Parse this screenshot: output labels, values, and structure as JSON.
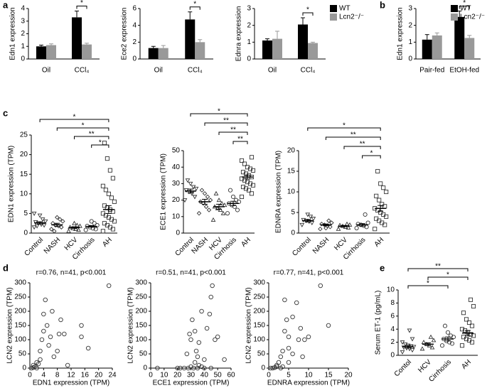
{
  "chart_data": [
    {
      "type": "bar",
      "panel": "a",
      "ylabel": "Edn1 expression",
      "categories": [
        "Oil",
        "CCl₄"
      ],
      "series": [
        {
          "name": "WT",
          "color": "#000000",
          "values": [
            1.0,
            3.3
          ],
          "errors": [
            0.1,
            0.5
          ]
        },
        {
          "name": "Lcn2⁻/⁻",
          "color": "#999999",
          "values": [
            1.1,
            1.15
          ],
          "errors": [
            0.1,
            0.1
          ]
        }
      ],
      "ylim": [
        0,
        4
      ],
      "yticks": [
        0,
        1,
        2,
        3,
        4
      ],
      "brackets": [
        {
          "label": "*",
          "category": 1
        }
      ]
    },
    {
      "type": "bar",
      "ylabel": "Ece2 expression",
      "categories": [
        "Oil",
        "CCl₄"
      ],
      "series": [
        {
          "name": "WT",
          "color": "#000000",
          "values": [
            1.3,
            4.7
          ],
          "errors": [
            0.2,
            0.9
          ]
        },
        {
          "name": "Lcn2⁻/⁻",
          "color": "#999999",
          "values": [
            1.3,
            2.0
          ],
          "errors": [
            0.3,
            0.3
          ]
        }
      ],
      "ylim": [
        0,
        6
      ],
      "yticks": [
        0,
        2,
        4,
        6
      ],
      "brackets": [
        {
          "label": "*",
          "category": 1
        }
      ]
    },
    {
      "type": "bar",
      "ylabel": "Ednra expression",
      "categories": [
        "Oil",
        "CCl₄"
      ],
      "series": [
        {
          "name": "WT",
          "color": "#000000",
          "values": [
            1.1,
            2.05
          ],
          "errors": [
            0.1,
            0.4
          ]
        },
        {
          "name": "Lcn2⁻/⁻",
          "color": "#999999",
          "values": [
            1.2,
            0.95
          ],
          "errors": [
            0.45,
            0.05
          ]
        }
      ],
      "ylim": [
        0,
        3
      ],
      "yticks": [
        0,
        1,
        2,
        3
      ],
      "legend": "outside right",
      "brackets": [
        {
          "label": "*",
          "category": 1
        }
      ]
    },
    {
      "type": "bar",
      "panel": "b",
      "ylabel": "Edn1 expression",
      "categories": [
        "Pair-fed",
        "EtOH-fed"
      ],
      "series": [
        {
          "name": "WT",
          "color": "#000000",
          "values": [
            1.15,
            2.5
          ],
          "errors": [
            0.3,
            0.35
          ]
        },
        {
          "name": "Lcn2⁻/⁻",
          "color": "#999999",
          "values": [
            1.4,
            1.25
          ],
          "errors": [
            0.15,
            0.15
          ]
        }
      ],
      "ylim": [
        0,
        3
      ],
      "yticks": [
        0,
        1,
        2,
        3
      ],
      "legend": "upper right",
      "brackets": [
        {
          "label": "*",
          "category": 1
        }
      ]
    },
    {
      "type": "strip",
      "panel": "c",
      "ylabel": "EDN1 expression (TPM)",
      "categories": [
        "Control",
        "NASH",
        "HCV",
        "Cirrhosis",
        "AH"
      ],
      "markers": [
        "triangle-down",
        "diamond",
        "triangle-up",
        "circle",
        "square"
      ],
      "groups": [
        [
          1.5,
          2,
          2.2,
          2.5,
          2.8,
          3,
          3.5,
          4.5,
          1.8,
          5
        ],
        [
          1,
          1.5,
          1.8,
          2,
          2.5,
          3,
          3.5,
          4,
          0.5
        ],
        [
          0.5,
          0.8,
          1,
          1.2,
          1.5,
          1.8,
          2,
          2.5
        ],
        [
          0.8,
          1,
          1.2,
          1.5,
          1.8,
          2,
          2.5,
          3
        ],
        [
          0.5,
          1,
          1.5,
          2,
          2.5,
          3,
          3.5,
          4,
          4.5,
          5,
          5.5,
          6,
          6.5,
          7,
          8,
          9,
          10,
          11,
          12,
          14,
          16,
          19,
          23
        ]
      ],
      "means": [
        2.6,
        2.1,
        1.4,
        1.7,
        6
      ],
      "sems": [
        0.3,
        0.4,
        0.2,
        0.2,
        1.0
      ],
      "ylim": [
        0,
        25
      ],
      "yticks": [
        0,
        5,
        10,
        15,
        20,
        25
      ],
      "brackets": [
        {
          "label": "*",
          "from": 0,
          "to": 4
        },
        {
          "label": "*",
          "from": 1,
          "to": 4
        },
        {
          "label": "**",
          "from": 2,
          "to": 4
        },
        {
          "label": "*",
          "from": 3,
          "to": 4
        }
      ]
    },
    {
      "type": "strip",
      "ylabel": "ECE1 expression (TPM)",
      "categories": [
        "Control",
        "NASH",
        "HCV",
        "Cirrhosis",
        "AH"
      ],
      "markers": [
        "triangle-down",
        "diamond",
        "triangle-up",
        "circle",
        "square"
      ],
      "groups": [
        [
          20,
          22,
          24,
          25,
          26,
          27,
          28,
          30,
          32
        ],
        [
          12,
          14,
          16,
          18,
          19,
          20,
          22,
          24,
          26
        ],
        [
          8,
          12,
          14,
          15,
          16,
          17,
          18,
          20,
          24
        ],
        [
          12,
          14,
          16,
          17,
          18,
          19,
          20,
          22,
          26
        ],
        [
          22,
          24,
          26,
          27,
          28,
          29,
          30,
          31,
          32,
          33,
          34,
          35,
          36,
          37,
          38,
          39,
          40,
          42,
          44,
          46
        ]
      ],
      "means": [
        25.5,
        19,
        16,
        18,
        34
      ],
      "sems": [
        1.2,
        1.5,
        1.5,
        1.3,
        1.2
      ],
      "ylim": [
        0,
        50
      ],
      "yticks": [
        0,
        10,
        20,
        30,
        40,
        50
      ],
      "brackets": [
        {
          "label": "*",
          "from": 0,
          "to": 4
        },
        {
          "label": "**",
          "from": 1,
          "to": 4
        },
        {
          "label": "**",
          "from": 2,
          "to": 4
        },
        {
          "label": "**",
          "from": 3,
          "to": 4
        }
      ]
    },
    {
      "type": "strip",
      "ylabel": "EDNRA expression (TPM)",
      "categories": [
        "Control",
        "NASH",
        "HCV",
        "Cirrhosis",
        "AH"
      ],
      "markers": [
        "triangle-down",
        "diamond",
        "triangle-up",
        "circle",
        "square"
      ],
      "groups": [
        [
          2,
          2.5,
          2.8,
          3,
          3.2,
          3.5,
          4,
          4.5
        ],
        [
          1,
          1.5,
          1.8,
          2,
          2.2,
          2.5,
          3,
          1.2
        ],
        [
          1,
          1.3,
          1.5,
          1.7,
          1.9,
          2,
          2.2
        ],
        [
          1.2,
          1.5,
          1.8,
          2,
          2.2,
          2.5,
          4.5
        ],
        [
          1,
          2,
          2.5,
          3,
          3.5,
          4,
          4.5,
          5,
          5.5,
          6,
          6.5,
          7,
          8,
          9,
          10,
          11,
          12,
          15
        ]
      ],
      "means": [
        3,
        2,
        1.7,
        2,
        6
      ],
      "sems": [
        0.3,
        0.2,
        0.15,
        0.3,
        0.7
      ],
      "ylim": [
        0,
        20
      ],
      "yticks": [
        0,
        5,
        10,
        15,
        20
      ],
      "brackets": [
        {
          "label": "*",
          "from": 0,
          "to": 4
        },
        {
          "label": "**",
          "from": 1,
          "to": 4
        },
        {
          "label": "**",
          "from": 2,
          "to": 4
        },
        {
          "label": "*",
          "from": 3,
          "to": 4
        }
      ]
    },
    {
      "type": "scatter",
      "panel": "d",
      "title": "r=0.76, n=41, p<0.001",
      "xlabel": "EDN1 expression (TPM)",
      "ylabel": "LCN2 expression (TPM)",
      "x": [
        0.5,
        1,
        1.5,
        1,
        2,
        2.5,
        2,
        3,
        3,
        3.5,
        4,
        4,
        4.5,
        5,
        5.5,
        6,
        6.5,
        7,
        8,
        8.5,
        9,
        10,
        11,
        15,
        15,
        17,
        23
      ],
      "y": [
        0,
        2,
        5,
        10,
        0,
        15,
        20,
        30,
        60,
        100,
        130,
        190,
        240,
        150,
        80,
        110,
        200,
        40,
        60,
        120,
        170,
        120,
        10,
        150,
        110,
        70,
        290
      ],
      "xlim": [
        0,
        24
      ],
      "xticks": [
        0,
        4,
        8,
        12,
        16,
        20,
        24
      ],
      "ylim": [
        0,
        300
      ],
      "yticks": [
        0,
        50,
        100,
        150,
        200,
        250,
        300
      ]
    },
    {
      "type": "scatter",
      "title": "r=0.51, n=41, p<0.001",
      "xlabel": "ECE1 expression (TPM)",
      "ylabel": "LCN2 expression (TPM)",
      "x": [
        5,
        20,
        22,
        25,
        28,
        30,
        32,
        35,
        38,
        40,
        45,
        27,
        30,
        29,
        31,
        33,
        34,
        35,
        36,
        38,
        40,
        42,
        44,
        45,
        46,
        48,
        50,
        55,
        33,
        36
      ],
      "y": [
        0,
        0,
        0,
        0,
        0,
        5,
        0,
        0,
        5,
        0,
        0,
        50,
        100,
        120,
        170,
        130,
        60,
        40,
        90,
        200,
        30,
        140,
        190,
        250,
        290,
        100,
        110,
        30,
        20,
        10
      ],
      "xlim": [
        0,
        60
      ],
      "xticks": [
        0,
        10,
        20,
        30,
        40,
        50,
        60
      ],
      "ylim": [
        0,
        300
      ],
      "yticks": [
        0,
        50,
        100,
        150,
        200,
        250,
        300
      ]
    },
    {
      "type": "scatter",
      "title": "r=0.77, n=41, p<0.001",
      "xlabel": "EDNRA expression (TPM)",
      "ylabel": "LCN2 expression (TPM)",
      "x": [
        0.5,
        1,
        1.5,
        2,
        2,
        2.5,
        3,
        3,
        3.5,
        4,
        4,
        4.5,
        5,
        5,
        6,
        6,
        7,
        7.5,
        8,
        8.5,
        9,
        10,
        13,
        15,
        5,
        3.5
      ],
      "y": [
        0,
        0,
        2,
        5,
        10,
        20,
        0,
        40,
        60,
        130,
        240,
        170,
        70,
        110,
        50,
        180,
        230,
        100,
        140,
        40,
        100,
        110,
        290,
        150,
        20,
        5
      ],
      "xlim": [
        0,
        20
      ],
      "xticks": [
        0,
        5,
        10,
        15,
        20
      ],
      "ylim": [
        0,
        300
      ],
      "yticks": [
        0,
        50,
        100,
        150,
        200,
        250,
        300
      ]
    },
    {
      "type": "strip",
      "panel": "e",
      "ylabel": "Serum ET-1 (pg/mL)",
      "categories": [
        "Contol",
        "HCV",
        "Cirrhosis",
        "AH"
      ],
      "markers": [
        "triangle-down",
        "triangle-up",
        "circle",
        "square"
      ],
      "groups": [
        [
          0.5,
          0.8,
          1,
          1.1,
          1.2,
          1.3,
          1.4,
          1.5,
          1.7,
          2,
          2.5,
          3.8
        ],
        [
          1,
          1.2,
          1.5,
          1.7,
          2,
          2.3,
          2.8
        ],
        [
          1.5,
          1.8,
          2,
          2.2,
          2.5,
          2.8,
          3,
          3.5,
          4.5
        ],
        [
          1.5,
          2,
          2.3,
          2.5,
          2.8,
          3,
          3.2,
          3.5,
          3.8,
          4,
          4.5,
          5,
          5.5,
          6.5,
          7.5,
          8.5
        ]
      ],
      "means": [
        1.3,
        1.7,
        2.5,
        3.4
      ],
      "sems": [
        0.2,
        0.2,
        0.3,
        0.4
      ],
      "ylim": [
        0,
        10
      ],
      "yticks": [
        0,
        2,
        4,
        6,
        8,
        10
      ],
      "brackets": [
        {
          "label": "**",
          "from": 0,
          "to": 3
        },
        {
          "label": "*",
          "from": 1,
          "to": 3
        },
        {
          "label": "*",
          "from": 0,
          "to": 2
        }
      ]
    }
  ]
}
